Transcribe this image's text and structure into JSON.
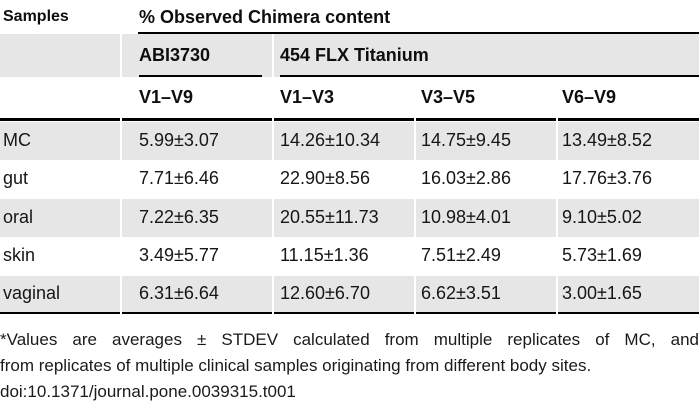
{
  "table": {
    "corner_header": "Samples",
    "top_header": "% Observed Chimera content",
    "group_headers": [
      {
        "label": "ABI3730"
      },
      {
        "label": "454 FLX Titanium"
      }
    ],
    "col_headers": [
      "V1–V9",
      "V1–V3",
      "V3–V5",
      "V6–V9"
    ],
    "rows": [
      {
        "label": "MC",
        "values": [
          "5.99±3.07",
          "14.26±10.34",
          "14.75±9.45",
          "13.49±8.52"
        ]
      },
      {
        "label": "gut",
        "values": [
          "7.71±6.46",
          "22.90±8.56",
          "16.03±2.86",
          "17.76±3.76"
        ]
      },
      {
        "label": "oral",
        "values": [
          "7.22±6.35",
          "20.55±11.73",
          "10.98±4.01",
          "9.10±5.02"
        ]
      },
      {
        "label": "skin",
        "values": [
          "3.49±5.77",
          "11.15±1.36",
          "7.51±2.49",
          "5.73±1.69"
        ]
      },
      {
        "label": "vaginal",
        "values": [
          "6.31±6.64",
          "12.60±6.70",
          "6.62±3.51",
          "3.00±1.65"
        ]
      }
    ]
  },
  "footnote": {
    "line1": "*Values are averages ± STDEV calculated from multiple replicates of MC, and",
    "line2": "from replicates of multiple clinical samples originating from different body sites.",
    "doi": "doi:10.1371/journal.pone.0039315.t001"
  },
  "colors": {
    "row_shade": "#e6e6e6",
    "rule": "#000000",
    "text": "#161616"
  }
}
